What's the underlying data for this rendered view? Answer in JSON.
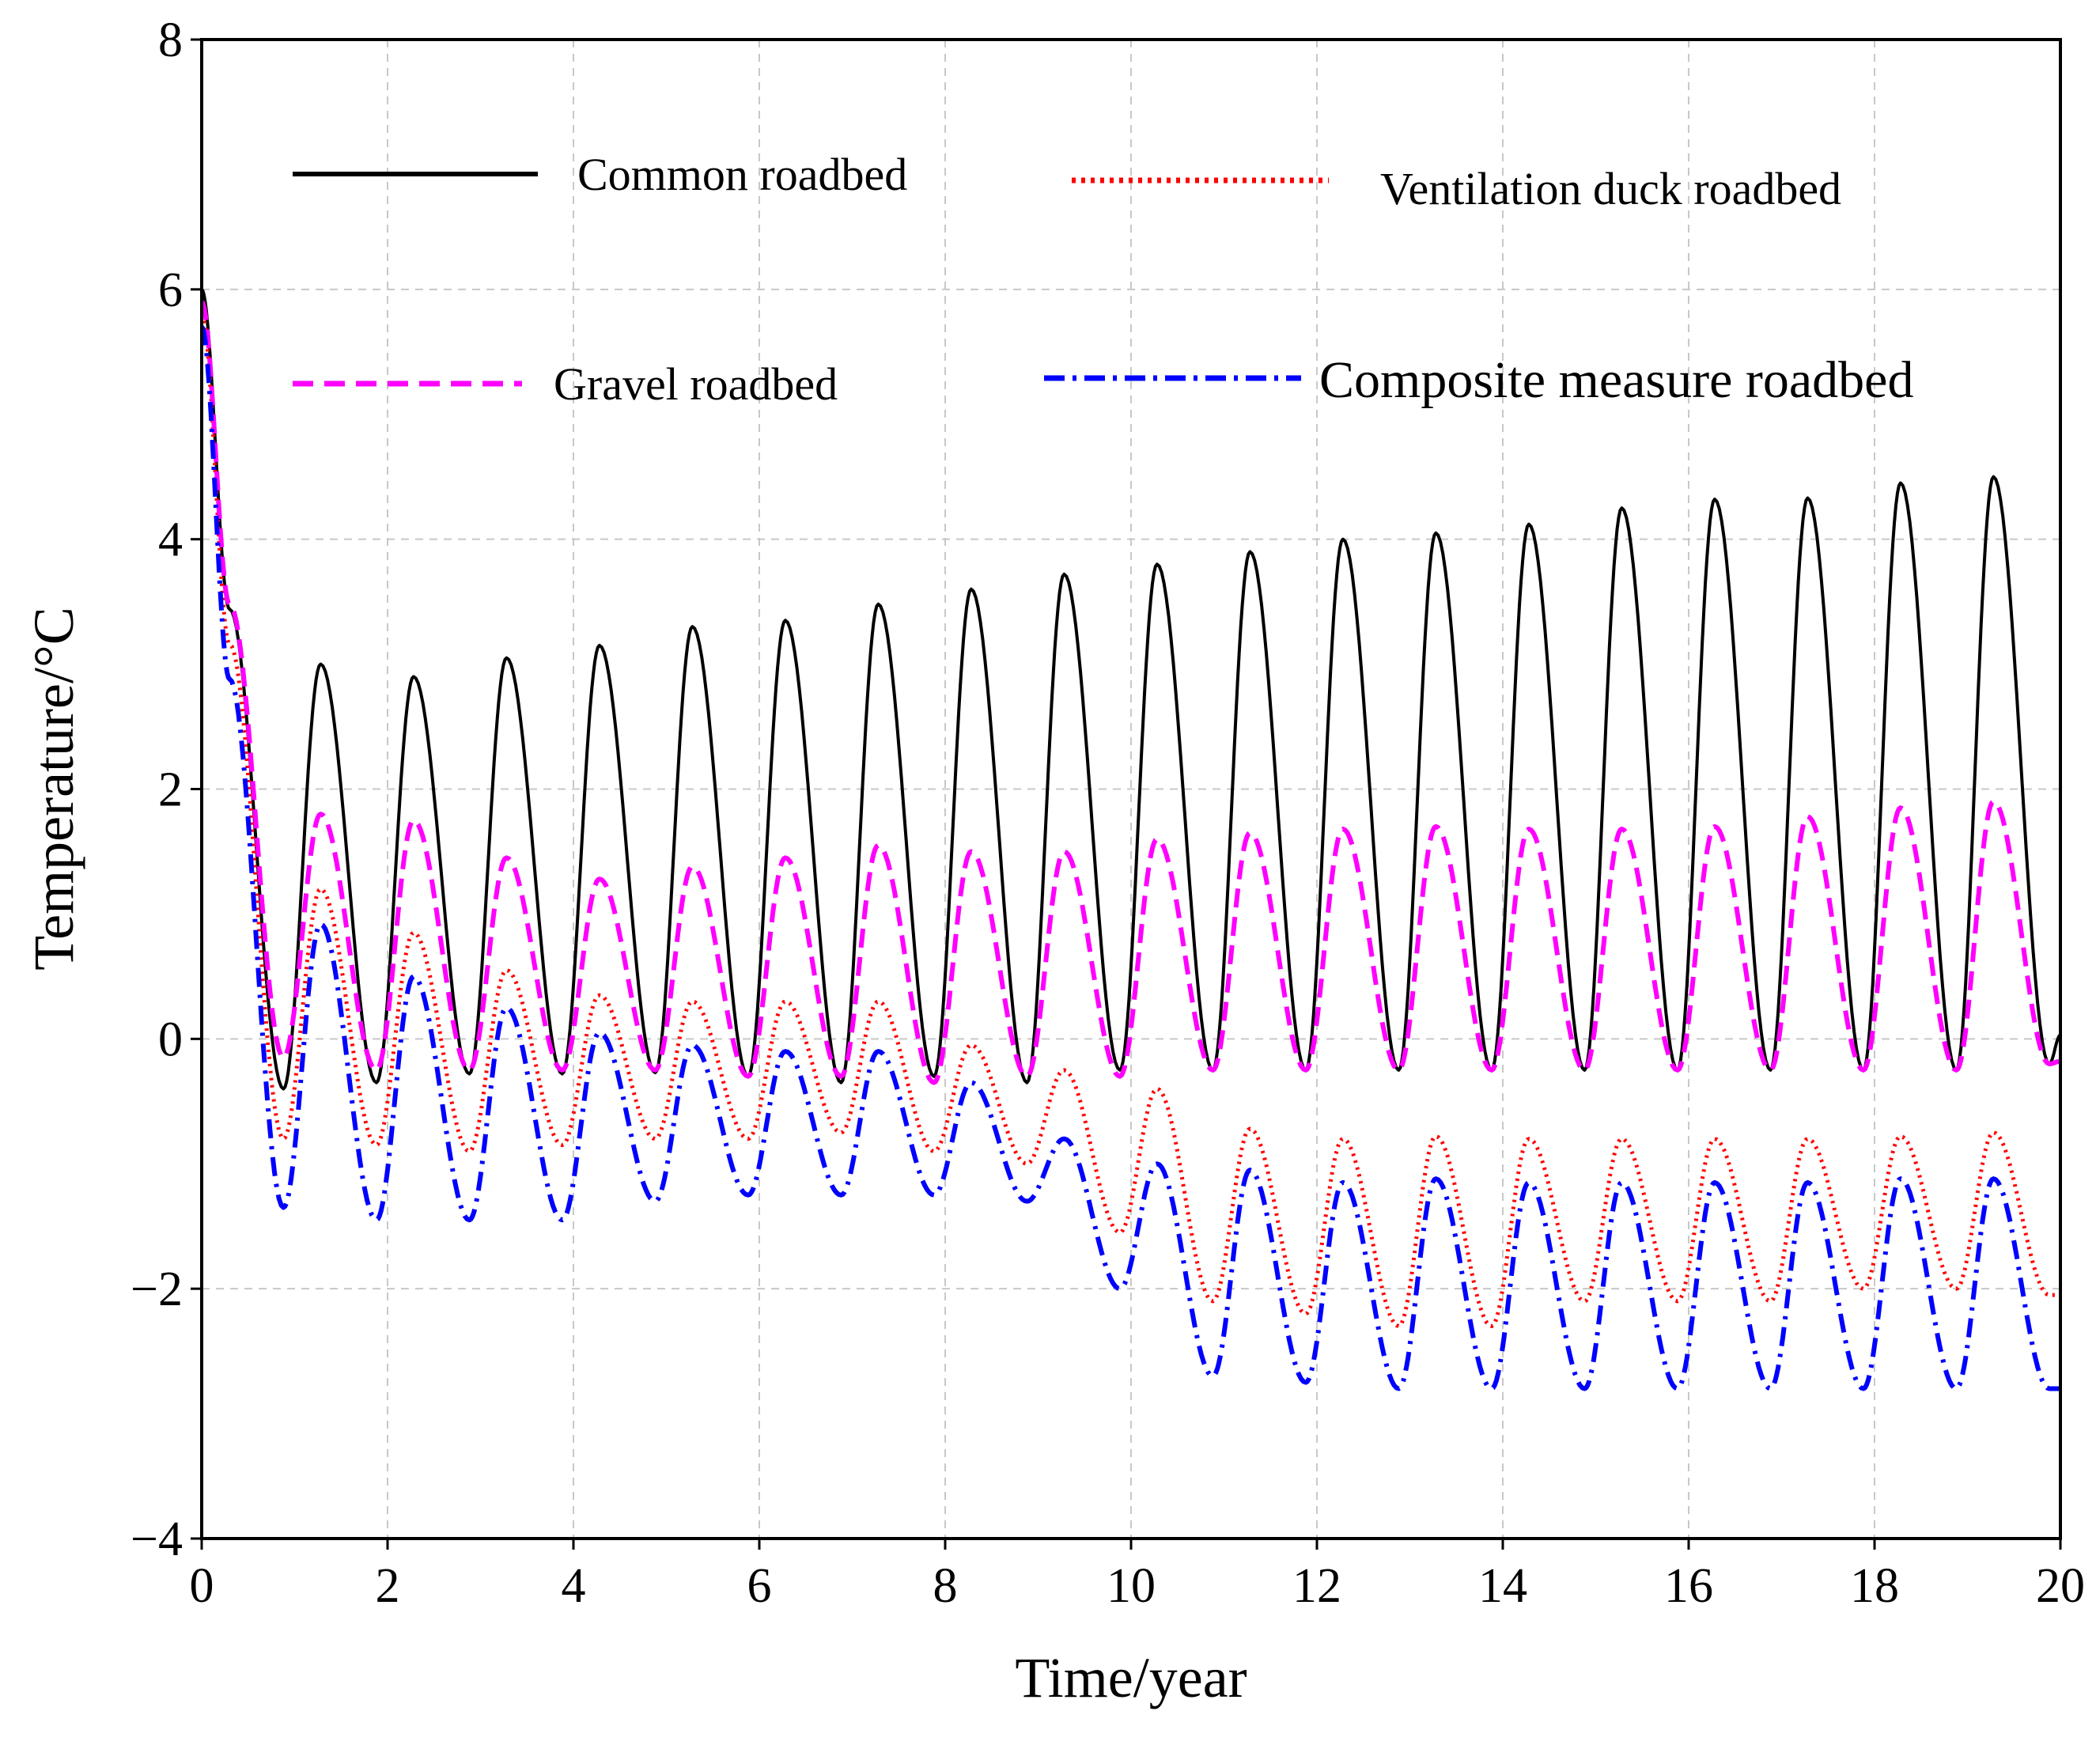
{
  "chart_data": {
    "type": "line",
    "title": "",
    "xlabel": "Time/year",
    "ylabel": "Temperature/°C",
    "xlim": [
      0,
      20
    ],
    "ylim": [
      -4,
      8
    ],
    "xticks": [
      0,
      2,
      4,
      6,
      8,
      10,
      12,
      14,
      16,
      18,
      20
    ],
    "yticks": [
      -4,
      -2,
      0,
      2,
      4,
      6,
      8
    ],
    "xtick_labels": [
      "0",
      "2",
      "4",
      "6",
      "8",
      "10",
      "12",
      "14",
      "16",
      "18",
      "20"
    ],
    "ytick_labels": [
      "−4",
      "−2",
      "0",
      "2",
      "4",
      "6",
      "8"
    ],
    "grid": true,
    "legend_position": "top",
    "series": [
      {
        "name": "Common roadbed",
        "color": "#000000",
        "style": "solid",
        "start": 6.0,
        "peaks": [
          3.0,
          2.9,
          3.05,
          3.15,
          3.3,
          3.35,
          3.48,
          3.6,
          3.72,
          3.8,
          3.9,
          4.0,
          4.05,
          4.12,
          4.25,
          4.32,
          4.33,
          4.45,
          4.5
        ],
        "troughs": [
          -0.4,
          -0.35,
          -0.28,
          -0.28,
          -0.27,
          -0.3,
          -0.35,
          -0.3,
          -0.35,
          -0.25,
          -0.25,
          -0.25,
          -0.25,
          -0.25,
          -0.25,
          -0.25,
          -0.25,
          -0.25,
          -0.25,
          -0.2
        ],
        "end": 0.03
      },
      {
        "name": "Ventilation duck roadbed",
        "color": "#ff0000",
        "style": "dotted",
        "start": 5.8,
        "peaks": [
          1.2,
          0.85,
          0.55,
          0.35,
          0.3,
          0.3,
          0.3,
          -0.05,
          -0.25,
          -0.4,
          -0.72,
          -0.8,
          -0.78,
          -0.8,
          -0.8,
          -0.8,
          -0.8,
          -0.78,
          -0.75
        ],
        "troughs": [
          -0.8,
          -0.85,
          -0.9,
          -0.85,
          -0.8,
          -0.8,
          -0.75,
          -0.9,
          -1.0,
          -1.55,
          -2.1,
          -2.2,
          -2.3,
          -2.3,
          -2.1,
          -2.1,
          -2.1,
          -2.0,
          -2.0,
          -2.05
        ],
        "end": -2.05
      },
      {
        "name": "Gravel roadbed",
        "color": "#ff00ff",
        "style": "dashed",
        "start": 5.9,
        "peaks": [
          1.8,
          1.75,
          1.45,
          1.28,
          1.38,
          1.45,
          1.55,
          1.5,
          1.5,
          1.6,
          1.65,
          1.68,
          1.7,
          1.68,
          1.68,
          1.7,
          1.78,
          1.85,
          1.9
        ],
        "troughs": [
          -0.15,
          -0.25,
          -0.25,
          -0.25,
          -0.25,
          -0.3,
          -0.3,
          -0.35,
          -0.3,
          -0.3,
          -0.25,
          -0.25,
          -0.25,
          -0.25,
          -0.25,
          -0.25,
          -0.25,
          -0.25,
          -0.25,
          -0.2
        ],
        "end": -0.18
      },
      {
        "name": "Composite measure roadbed",
        "color": "#0000ff",
        "style": "dashdot",
        "start": 5.7,
        "peaks": [
          0.92,
          0.5,
          0.25,
          0.05,
          -0.05,
          -0.1,
          -0.1,
          -0.35,
          -0.8,
          -1.0,
          -1.05,
          -1.15,
          -1.12,
          -1.15,
          -1.15,
          -1.15,
          -1.15,
          -1.12,
          -1.12
        ],
        "troughs": [
          -1.35,
          -1.45,
          -1.45,
          -1.45,
          -1.3,
          -1.25,
          -1.25,
          -1.25,
          -1.3,
          -2.0,
          -2.7,
          -2.75,
          -2.8,
          -2.8,
          -2.8,
          -2.8,
          -2.8,
          -2.8,
          -2.8,
          -2.8
        ],
        "end": -2.8
      }
    ]
  }
}
